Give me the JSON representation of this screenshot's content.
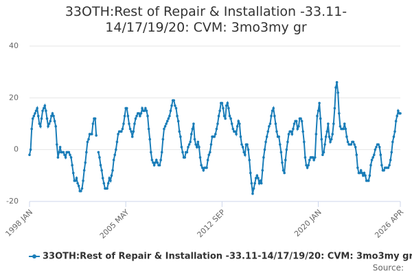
{
  "chart_data": {
    "type": "line",
    "title": "33OTH:Rest of Repair & Installation -33.11-14/17/19/20: CVM: 3mo3my gr",
    "source": "Source:",
    "categories": [
      "1998 JAN",
      null,
      null,
      null,
      null,
      null,
      null,
      null,
      null,
      null,
      null,
      null,
      null,
      null,
      null,
      null,
      null,
      null,
      null,
      null,
      null,
      null,
      null,
      null,
      null,
      null,
      null,
      null,
      null,
      null,
      null,
      null,
      null,
      null,
      null,
      null,
      null,
      null,
      null,
      null,
      null,
      null,
      null,
      null,
      null,
      null,
      null,
      null,
      null,
      null,
      null,
      null,
      null,
      null,
      null,
      null,
      null,
      null,
      null,
      null,
      null,
      null,
      null,
      null,
      null,
      null,
      null,
      null,
      null,
      null,
      null,
      null,
      null,
      null,
      null,
      null,
      null,
      null,
      null,
      null,
      null,
      null,
      null,
      null,
      null,
      null,
      null,
      null,
      "2005 MAY",
      null,
      null,
      null,
      null,
      null,
      null,
      null,
      null,
      null,
      null,
      null,
      null,
      null,
      null,
      null,
      null,
      null,
      null,
      null,
      null,
      null,
      null,
      null,
      null,
      null,
      null,
      null,
      null,
      null,
      null,
      null,
      null,
      null,
      null,
      null,
      null,
      null,
      null,
      null,
      null,
      null,
      null,
      null,
      null,
      null,
      null,
      null,
      null,
      null,
      null,
      null,
      null,
      null,
      null,
      null,
      null,
      null,
      null,
      null,
      null,
      null,
      null,
      null,
      null,
      null,
      null,
      null,
      null,
      null,
      null,
      null,
      null,
      null,
      null,
      null,
      null,
      null,
      null,
      null,
      null,
      null,
      null,
      null,
      null,
      null,
      null,
      null,
      "2012 SEP",
      null,
      null,
      null,
      null,
      null,
      null,
      null,
      null,
      null,
      null,
      null,
      null,
      null,
      null,
      null,
      null,
      null,
      null,
      null,
      null,
      null,
      null,
      null,
      null,
      null,
      null,
      null,
      null,
      null,
      null,
      null,
      null,
      null,
      null,
      null,
      null,
      null,
      null,
      null,
      null,
      null,
      null,
      null,
      null,
      null,
      null,
      null,
      null,
      null,
      null,
      null,
      null,
      null,
      null,
      null,
      null,
      null,
      null,
      null,
      null,
      null,
      null,
      null,
      null,
      null,
      null,
      null,
      null,
      null,
      null,
      null,
      null,
      null,
      null,
      null,
      null,
      null,
      null,
      null,
      null,
      null,
      null,
      null,
      null,
      null,
      null,
      null,
      "2020 JAN",
      null,
      null,
      null,
      null,
      null,
      null,
      null,
      null,
      null,
      null,
      null,
      null,
      null,
      null,
      null,
      null,
      null,
      null,
      null,
      null,
      null,
      null,
      null,
      null,
      null,
      null,
      null,
      null,
      null,
      null,
      null,
      null,
      null,
      null,
      null,
      null,
      null,
      null,
      null,
      null,
      null,
      null,
      null,
      null,
      null,
      null,
      null,
      null,
      null,
      null,
      null,
      null,
      null,
      null,
      null,
      null,
      null,
      null,
      null,
      null,
      null,
      null,
      null,
      null,
      null,
      null,
      null,
      null,
      null,
      null,
      null,
      null,
      null,
      null,
      "2026 APR"
    ],
    "series": [
      {
        "name": "33OTH:Rest of Repair & Installation -33.11-14/17/19/20: CVM: 3mo3my gr",
        "color": "#1a7db8",
        "values": [
          -2,
          0,
          8,
          12,
          13,
          14,
          15,
          16,
          13,
          10,
          9,
          12,
          15,
          16,
          17,
          15,
          12,
          9,
          10,
          11,
          13,
          14,
          13,
          11,
          9,
          2,
          -3,
          -1,
          1,
          -1,
          -1,
          -1,
          -2,
          -3,
          -1,
          -1,
          -1,
          -2,
          -3,
          -6,
          -9,
          -12,
          -12,
          -11,
          -13,
          -14,
          -16,
          -16,
          -15,
          -12,
          -8,
          -5,
          -1,
          3,
          4,
          6,
          6,
          6,
          10,
          12,
          12,
          5.5,
          null,
          -1,
          -3,
          -6,
          -8,
          -11,
          -13,
          -15,
          -15,
          -15,
          -13,
          -11,
          -12,
          -10,
          -8,
          -4,
          -2,
          0,
          3,
          6,
          7,
          7,
          7,
          8,
          10,
          13,
          16,
          16,
          13,
          10,
          8,
          7,
          5,
          7,
          10,
          12,
          13,
          14,
          14,
          13,
          14,
          16,
          15,
          15,
          16,
          15,
          13,
          8,
          4,
          -1,
          -4,
          -5,
          -6,
          -5,
          -4,
          -5,
          -6,
          -6,
          -4,
          -1,
          4,
          8,
          9,
          10,
          11,
          12,
          13,
          15,
          17,
          19,
          19,
          17,
          16,
          13,
          11,
          7,
          5,
          1,
          -1,
          -3,
          -3,
          -1,
          -1,
          1,
          2,
          3,
          6,
          8,
          10,
          4,
          2,
          1,
          3,
          1,
          -3,
          -6,
          -7,
          -8,
          -7,
          -7,
          -7,
          -4,
          -2,
          -1,
          2,
          5,
          5,
          5,
          6,
          8,
          10,
          13,
          15,
          18,
          18,
          16,
          13,
          12,
          17,
          18,
          16,
          13,
          12,
          10,
          8,
          7,
          7,
          6,
          9,
          11,
          10,
          5,
          2,
          1,
          -1,
          -2,
          2,
          2,
          0,
          -4,
          -9,
          -13,
          -17,
          -15,
          -13,
          -11,
          -10,
          -11,
          -13,
          -12,
          -13,
          -8,
          -3,
          0,
          3,
          5,
          7,
          9,
          10,
          13,
          15,
          16,
          13,
          10,
          7,
          5,
          5,
          2,
          -1,
          -5,
          -8,
          -9,
          -4,
          0,
          3,
          6,
          7,
          7,
          6,
          8,
          10,
          11,
          11,
          8,
          9,
          12,
          12,
          11,
          7,
          3,
          -3,
          -6,
          -7,
          -6,
          -4,
          -3,
          -3,
          -3,
          -4,
          -3,
          6,
          13,
          15,
          18,
          12,
          4,
          -2,
          -1,
          2,
          5,
          7,
          10,
          5,
          3,
          4,
          6,
          10,
          16,
          24,
          26,
          22,
          14,
          9,
          8,
          8,
          8,
          10,
          8,
          5,
          3,
          2,
          2,
          2,
          3,
          3,
          2,
          1,
          -2,
          -7,
          -9,
          -9,
          -8,
          -9,
          -10,
          -9,
          -10,
          -12,
          -12,
          -12,
          -10,
          -6,
          -4,
          -3,
          -2,
          0,
          1,
          2,
          2,
          1,
          -2,
          -6,
          -8,
          -8,
          -7,
          -7,
          -7,
          -7,
          -6,
          -4,
          -1,
          3,
          5,
          7,
          11,
          13,
          15,
          14,
          14
        ]
      }
    ],
    "ylim": [
      -20,
      40
    ],
    "yticks": [
      -20,
      0,
      20,
      40
    ],
    "grid": true,
    "legend": "bottom"
  }
}
